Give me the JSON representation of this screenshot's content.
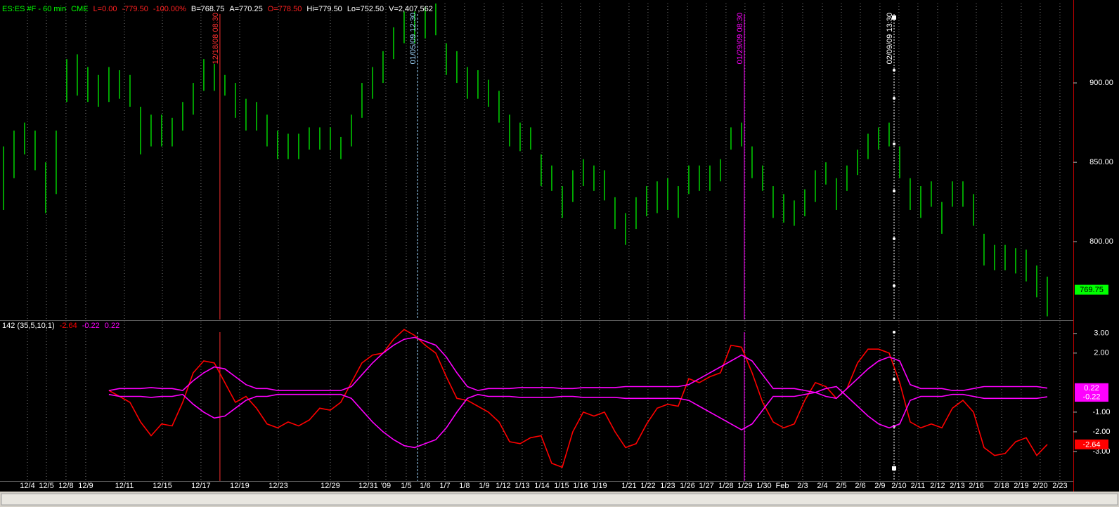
{
  "chart_data": [
    {
      "type": "ohlc",
      "header": [
        {
          "text": "ES:ES #F - 60 min",
          "color": "#00ff00"
        },
        {
          "text": "CME",
          "color": "#00ff00"
        },
        {
          "text": "L=0.00",
          "color": "#ff2020"
        },
        {
          "text": "-779.50",
          "color": "#ff2020"
        },
        {
          "text": "-100.00%",
          "color": "#ff2020"
        },
        {
          "text": "B=768.75",
          "color": "#ffffff"
        },
        {
          "text": "A=770.25",
          "color": "#ffffff"
        },
        {
          "text": "O=778.50",
          "color": "#ff2020"
        },
        {
          "text": "Hi=779.50",
          "color": "#ffffff"
        },
        {
          "text": "Lo=752.50",
          "color": "#ffffff"
        },
        {
          "text": "V=2,407,562",
          "color": "#ffffff"
        }
      ],
      "color": "#00c800",
      "high": [
        860,
        870,
        875,
        870,
        850,
        870,
        915,
        918,
        910,
        905,
        910,
        908,
        905,
        885,
        880,
        880,
        878,
        888,
        900,
        915,
        912,
        905,
        900,
        890,
        888,
        880,
        870,
        868,
        868,
        872,
        872,
        872,
        866,
        880,
        900,
        910,
        920,
        935,
        945,
        945,
        948,
        950,
        925,
        920,
        910,
        908,
        902,
        895,
        880,
        875,
        872,
        855,
        848,
        835,
        845,
        852,
        848,
        845,
        828,
        818,
        828,
        835,
        838,
        840,
        835,
        848,
        848,
        848,
        852,
        872,
        875,
        860,
        848,
        835,
        830,
        826,
        833,
        845,
        850,
        840,
        848,
        858,
        868,
        872,
        875,
        860,
        840,
        835,
        838,
        825,
        838,
        838,
        830,
        805,
        798,
        798,
        796,
        795,
        785,
        778
      ],
      "low": [
        820,
        840,
        855,
        845,
        818,
        830,
        888,
        892,
        888,
        885,
        888,
        890,
        885,
        855,
        860,
        860,
        860,
        870,
        880,
        895,
        895,
        892,
        878,
        870,
        870,
        860,
        852,
        852,
        852,
        858,
        858,
        858,
        852,
        860,
        878,
        890,
        900,
        915,
        925,
        925,
        928,
        930,
        905,
        900,
        890,
        890,
        885,
        875,
        860,
        857,
        858,
        835,
        832,
        815,
        825,
        835,
        832,
        826,
        808,
        798,
        808,
        816,
        818,
        820,
        815,
        830,
        832,
        832,
        838,
        858,
        860,
        840,
        832,
        815,
        812,
        810,
        816,
        825,
        836,
        820,
        832,
        842,
        852,
        858,
        860,
        840,
        820,
        815,
        822,
        805,
        822,
        822,
        810,
        785,
        782,
        782,
        780,
        775,
        765,
        753
      ],
      "last": {
        "value": 769.75,
        "label": "769.75",
        "color": "#00ff00"
      },
      "xlim": [
        -0.33,
        101.47
      ],
      "ylim": [
        751,
        950
      ],
      "yticks": [
        {
          "value": 800,
          "label": "800.00"
        },
        {
          "value": 850,
          "label": "850.00"
        },
        {
          "value": 900,
          "label": "900.00"
        }
      ],
      "markers": [
        {
          "x": 20.53,
          "label": "12/18/08 08:30",
          "color": "#ff3030",
          "style": "solid",
          "handles": false
        },
        {
          "x": 39.27,
          "label": "01/05/09 12:30",
          "color": "#a0d8ff",
          "style": "dashed",
          "handles": false
        },
        {
          "x": 70.27,
          "label": "01/29/09 08:30",
          "color": "#ff00ff",
          "style": "solid",
          "handles": false
        },
        {
          "x": 84.47,
          "label": "02/09/09 13:30",
          "color": "#ffffff",
          "style": "dotted",
          "handles": true
        }
      ]
    },
    {
      "type": "line",
      "title": "142 (35,5,10,1)",
      "title_color": "#ffffff",
      "series": [
        {
          "color": "#ff0000",
          "last": {
            "value": -2.64,
            "label": "-2.64"
          },
          "values": [
            null,
            null,
            null,
            null,
            null,
            null,
            null,
            null,
            null,
            null,
            0.1,
            -0.2,
            -0.5,
            -1.5,
            -2.2,
            -1.6,
            -1.7,
            -0.5,
            1.0,
            1.6,
            1.5,
            0.5,
            -0.5,
            -0.2,
            -0.8,
            -1.6,
            -1.8,
            -1.5,
            -1.7,
            -1.4,
            -0.8,
            -0.9,
            -0.5,
            0.5,
            1.5,
            1.9,
            2.0,
            2.7,
            3.2,
            2.9,
            2.4,
            2.0,
            0.8,
            -0.3,
            -0.4,
            -0.7,
            -1.0,
            -1.5,
            -2.5,
            -2.6,
            -2.3,
            -2.2,
            -3.6,
            -3.8,
            -2.0,
            -1.0,
            -1.2,
            -1.0,
            -2.0,
            -2.8,
            -2.6,
            -1.6,
            -0.8,
            -0.6,
            -0.7,
            0.7,
            0.5,
            0.8,
            1.0,
            2.4,
            2.3,
            1.0,
            -0.5,
            -1.5,
            -1.8,
            -1.6,
            -0.4,
            0.5,
            0.3,
            -0.3,
            0.2,
            1.5,
            2.2,
            2.2,
            2.0,
            0.5,
            -1.5,
            -1.8,
            -1.6,
            -1.8,
            -0.8,
            -0.4,
            -1.0,
            -2.8,
            -3.2,
            -3.1,
            -2.5,
            -2.3,
            -3.2,
            -2.64
          ]
        },
        {
          "color": "#ff00ff",
          "last": {
            "value": -0.22,
            "label": "-0.22"
          },
          "values": [
            null,
            null,
            null,
            null,
            null,
            null,
            null,
            null,
            null,
            null,
            -0.1,
            -0.2,
            -0.2,
            -0.2,
            -0.25,
            -0.2,
            -0.2,
            -0.1,
            -0.6,
            -1.0,
            -1.3,
            -1.2,
            -0.8,
            -0.4,
            -0.2,
            -0.2,
            -0.1,
            -0.1,
            -0.1,
            -0.1,
            -0.1,
            -0.1,
            -0.1,
            -0.3,
            -0.9,
            -1.5,
            -2.0,
            -2.4,
            -2.7,
            -2.8,
            -2.6,
            -2.4,
            -1.8,
            -1.0,
            -0.3,
            -0.1,
            -0.2,
            -0.2,
            -0.2,
            -0.25,
            -0.25,
            -0.25,
            -0.25,
            -0.2,
            -0.2,
            -0.25,
            -0.25,
            -0.25,
            -0.25,
            -0.3,
            -0.3,
            -0.3,
            -0.3,
            -0.3,
            -0.3,
            -0.4,
            -0.7,
            -1.0,
            -1.3,
            -1.6,
            -1.9,
            -1.6,
            -0.9,
            -0.2,
            -0.2,
            -0.2,
            -0.1,
            0.0,
            0.2,
            0.3,
            -0.2,
            -0.7,
            -1.2,
            -1.6,
            -1.8,
            -1.6,
            -0.4,
            -0.2,
            -0.2,
            -0.2,
            -0.1,
            -0.1,
            -0.2,
            -0.3,
            -0.3,
            -0.3,
            -0.3,
            -0.3,
            -0.3,
            -0.22
          ]
        },
        {
          "color": "#ff00ff",
          "last": {
            "value": 0.22,
            "label": "0.22"
          },
          "values": [
            null,
            null,
            null,
            null,
            null,
            null,
            null,
            null,
            null,
            null,
            0.1,
            0.2,
            0.2,
            0.2,
            0.25,
            0.2,
            0.2,
            0.1,
            0.6,
            1.0,
            1.3,
            1.2,
            0.8,
            0.4,
            0.2,
            0.2,
            0.1,
            0.1,
            0.1,
            0.1,
            0.1,
            0.1,
            0.1,
            0.3,
            0.9,
            1.5,
            2.0,
            2.4,
            2.7,
            2.8,
            2.6,
            2.4,
            1.8,
            1.0,
            0.3,
            0.1,
            0.2,
            0.2,
            0.2,
            0.25,
            0.25,
            0.25,
            0.25,
            0.2,
            0.2,
            0.25,
            0.25,
            0.25,
            0.25,
            0.3,
            0.3,
            0.3,
            0.3,
            0.3,
            0.3,
            0.4,
            0.7,
            1.0,
            1.3,
            1.6,
            1.9,
            1.6,
            0.9,
            0.2,
            0.2,
            0.2,
            0.1,
            0.0,
            -0.2,
            -0.3,
            0.2,
            0.7,
            1.2,
            1.6,
            1.8,
            1.6,
            0.4,
            0.2,
            0.2,
            0.2,
            0.1,
            0.1,
            0.2,
            0.3,
            0.3,
            0.3,
            0.3,
            0.3,
            0.3,
            0.22
          ]
        }
      ],
      "xlim": [
        -0.33,
        101.47
      ],
      "ylim": [
        -4.5,
        3.6
      ],
      "yticks": [
        {
          "value": 3,
          "label": "3.00"
        },
        {
          "value": 2,
          "label": "2.00"
        },
        {
          "value": -1,
          "label": "-1.00"
        },
        {
          "value": -2,
          "label": "-2.00"
        },
        {
          "value": -3,
          "label": "-3.00"
        }
      ],
      "xticks": [
        {
          "value": 2.27,
          "label": "12/4"
        },
        {
          "value": 4.07,
          "label": "12/5"
        },
        {
          "value": 5.93,
          "label": "12/8"
        },
        {
          "value": 7.8,
          "label": "12/9"
        },
        {
          "value": 11.47,
          "label": "12/11"
        },
        {
          "value": 15.07,
          "label": "12/15"
        },
        {
          "value": 18.73,
          "label": "12/17"
        },
        {
          "value": 22.4,
          "label": "12/19"
        },
        {
          "value": 26.07,
          "label": "12/23"
        },
        {
          "value": 31,
          "label": "12/29"
        },
        {
          "value": 34.6,
          "label": "12/31"
        },
        {
          "value": 36.27,
          "label": "'09"
        },
        {
          "value": 38.2,
          "label": "1/5"
        },
        {
          "value": 40,
          "label": "1/6"
        },
        {
          "value": 41.87,
          "label": "1/7"
        },
        {
          "value": 43.73,
          "label": "1/8"
        },
        {
          "value": 45.6,
          "label": "1/9"
        },
        {
          "value": 47.4,
          "label": "1/12"
        },
        {
          "value": 49.2,
          "label": "1/13"
        },
        {
          "value": 51.07,
          "label": "1/14"
        },
        {
          "value": 52.93,
          "label": "1/15"
        },
        {
          "value": 54.73,
          "label": "1/16"
        },
        {
          "value": 56.53,
          "label": "1/19"
        },
        {
          "value": 59.33,
          "label": "1/21"
        },
        {
          "value": 61.13,
          "label": "1/22"
        },
        {
          "value": 63,
          "label": "1/23"
        },
        {
          "value": 64.87,
          "label": "1/26"
        },
        {
          "value": 66.67,
          "label": "1/27"
        },
        {
          "value": 68.53,
          "label": "1/28"
        },
        {
          "value": 70.33,
          "label": "1/29"
        },
        {
          "value": 72.13,
          "label": "1/30"
        },
        {
          "value": 73.87,
          "label": "Feb"
        },
        {
          "value": 75.8,
          "label": "2/3"
        },
        {
          "value": 77.67,
          "label": "2/4"
        },
        {
          "value": 79.47,
          "label": "2/5"
        },
        {
          "value": 81.27,
          "label": "2/6"
        },
        {
          "value": 83.13,
          "label": "2/9"
        },
        {
          "value": 84.93,
          "label": "2/10"
        },
        {
          "value": 86.73,
          "label": "2/11"
        },
        {
          "value": 88.6,
          "label": "2/12"
        },
        {
          "value": 90.47,
          "label": "2/13"
        },
        {
          "value": 92.27,
          "label": "2/16"
        },
        {
          "value": 94.67,
          "label": "2/18"
        },
        {
          "value": 96.53,
          "label": "2/19"
        },
        {
          "value": 98.33,
          "label": "2/20"
        },
        {
          "value": 100.2,
          "label": "2/23"
        }
      ]
    }
  ]
}
